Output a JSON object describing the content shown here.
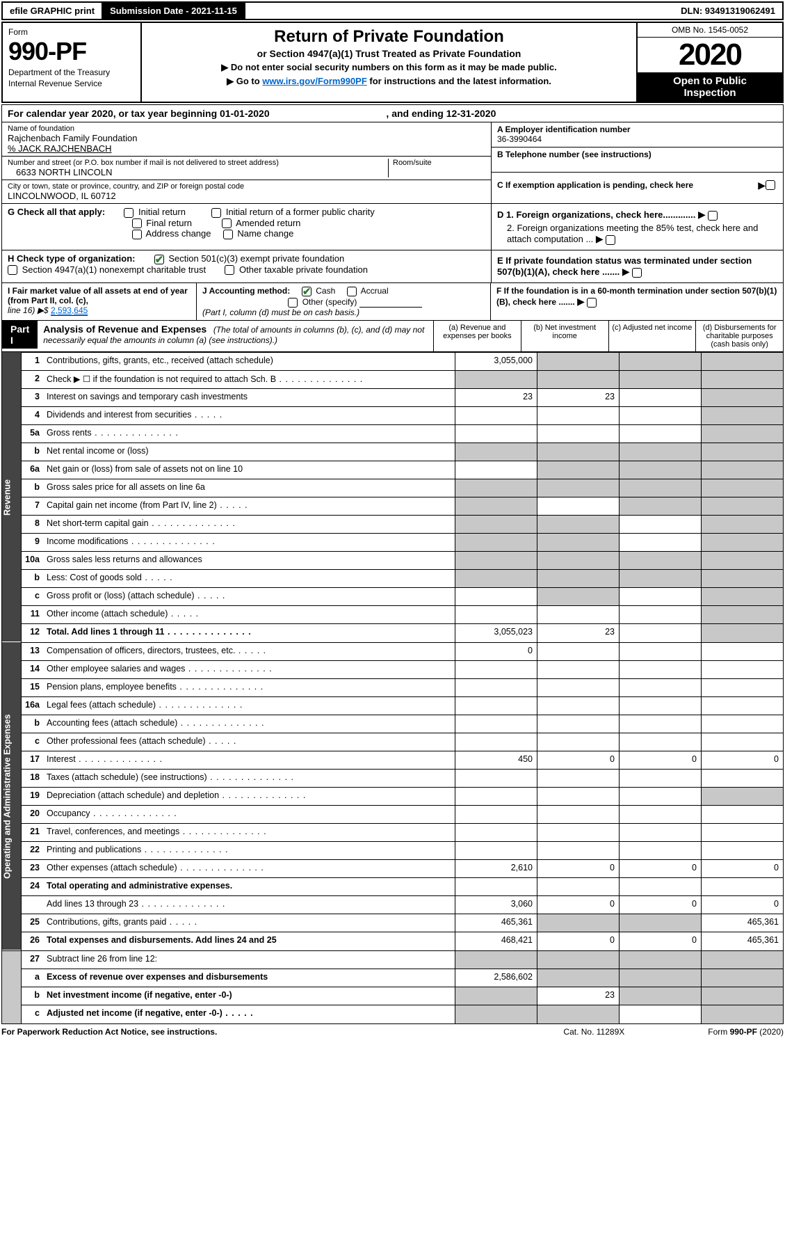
{
  "topbar": {
    "efile": "efile GRAPHIC print",
    "submission_label": "Submission Date - 2021-11-15",
    "dln_label": "DLN: 93491319062491"
  },
  "header": {
    "form_label": "Form",
    "form_number": "990-PF",
    "dept1": "Department of the Treasury",
    "dept2": "Internal Revenue Service",
    "title": "Return of Private Foundation",
    "subtitle": "or Section 4947(a)(1) Trust Treated as Private Foundation",
    "note1": "▶ Do not enter social security numbers on this form as it may be made public.",
    "note2_pre": "▶ Go to ",
    "note2_link": "www.irs.gov/Form990PF",
    "note2_post": " for instructions and the latest information.",
    "omb": "OMB No. 1545-0052",
    "year": "2020",
    "open1": "Open to Public",
    "open2": "Inspection"
  },
  "calendar": {
    "text_pre": "For calendar year 2020, or tax year beginning 01-01-2020",
    "text_mid": ", and ending 12-31-2020"
  },
  "foundation": {
    "name_label": "Name of foundation",
    "name": "Rajchenbach Family Foundation",
    "care_of": "% JACK RAJCHENBACH",
    "addr_label": "Number and street (or P.O. box number if mail is not delivered to street address)",
    "addr": "6633 NORTH LINCOLN",
    "room_label": "Room/suite",
    "room": "",
    "city_label": "City or town, state or province, country, and ZIP or foreign postal code",
    "city": "LINCOLNWOOD, IL  60712",
    "ein_label": "A Employer identification number",
    "ein": "36-3990464",
    "tel_label": "B Telephone number (see instructions)",
    "tel": "",
    "c_label": "C If exemption application is pending, check here",
    "d1_label": "D 1. Foreign organizations, check here.............",
    "d2_label": "2. Foreign organizations meeting the 85% test, check here and attach computation ...",
    "e_label": "E  If private foundation status was terminated under section 507(b)(1)(A), check here .......",
    "f_label": "F  If the foundation is in a 60-month termination under section 507(b)(1)(B), check here ......."
  },
  "g_section": {
    "label": "G Check all that apply:",
    "opts": [
      "Initial return",
      "Final return",
      "Address change",
      "Initial return of a former public charity",
      "Amended return",
      "Name change"
    ]
  },
  "h_section": {
    "label": "H Check type of organization:",
    "opt1": "Section 501(c)(3) exempt private foundation",
    "opt2": "Section 4947(a)(1) nonexempt charitable trust",
    "opt3": "Other taxable private foundation"
  },
  "i_section": {
    "label": "I Fair market value of all assets at end of year (from Part II, col. (c),",
    "line16": "line 16) ▶$",
    "value": "2,593,645"
  },
  "j_section": {
    "label": "J Accounting method:",
    "cash": "Cash",
    "accrual": "Accrual",
    "other": "Other (specify)",
    "note": "(Part I, column (d) must be on cash basis.)"
  },
  "part1": {
    "label": "Part I",
    "title": "Analysis of Revenue and Expenses",
    "title_note": " (The total of amounts in columns (b), (c), and (d) may not necessarily equal the amounts in column (a) (see instructions).)",
    "col_a": "(a)   Revenue and expenses per books",
    "col_b": "(b)   Net investment income",
    "col_c": "(c)   Adjusted net income",
    "col_d": "(d)   Disbursements for charitable purposes (cash basis only)"
  },
  "revenue_label": "Revenue",
  "expenses_label": "Operating and Administrative Expenses",
  "lines": {
    "l1": {
      "n": "1",
      "t": "Contributions, gifts, grants, etc., received (attach schedule)",
      "a": "3,055,000",
      "b": "",
      "c": "",
      "d": "",
      "shade_b": true,
      "shade_c": true,
      "shade_d": true
    },
    "l2": {
      "n": "2",
      "t": "Check ▶ ☐ if the foundation is not required to attach Sch. B"
    },
    "l3": {
      "n": "3",
      "t": "Interest on savings and temporary cash investments",
      "a": "23",
      "b": "23",
      "c": "",
      "d": "",
      "shade_d": true
    },
    "l4": {
      "n": "4",
      "t": "Dividends and interest from securities",
      "a": "",
      "b": "",
      "c": "",
      "d": "",
      "shade_d": true
    },
    "l5a": {
      "n": "5a",
      "t": "Gross rents",
      "a": "",
      "b": "",
      "c": "",
      "d": "",
      "shade_d": true
    },
    "l5b": {
      "n": "b",
      "t": "Net rental income or (loss)"
    },
    "l6a": {
      "n": "6a",
      "t": "Net gain or (loss) from sale of assets not on line 10",
      "a": "",
      "b": "",
      "c": "",
      "d": "",
      "shade_b": true,
      "shade_c": true,
      "shade_d": true
    },
    "l6b": {
      "n": "b",
      "t": "Gross sales price for all assets on line 6a"
    },
    "l7": {
      "n": "7",
      "t": "Capital gain net income (from Part IV, line 2)",
      "a": "",
      "b": "",
      "c": "",
      "d": "",
      "shade_a": true,
      "shade_c": true,
      "shade_d": true
    },
    "l8": {
      "n": "8",
      "t": "Net short-term capital gain",
      "a": "",
      "b": "",
      "c": "",
      "d": "",
      "shade_a": true,
      "shade_b": true,
      "shade_d": true
    },
    "l9": {
      "n": "9",
      "t": "Income modifications",
      "a": "",
      "b": "",
      "c": "",
      "d": "",
      "shade_a": true,
      "shade_b": true,
      "shade_d": true
    },
    "l10a": {
      "n": "10a",
      "t": "Gross sales less returns and allowances"
    },
    "l10b": {
      "n": "b",
      "t": "Less: Cost of goods sold"
    },
    "l10c": {
      "n": "c",
      "t": "Gross profit or (loss) (attach schedule)",
      "a": "",
      "b": "",
      "c": "",
      "d": "",
      "shade_b": true,
      "shade_d": true
    },
    "l11": {
      "n": "11",
      "t": "Other income (attach schedule)",
      "a": "",
      "b": "",
      "c": "",
      "d": "",
      "shade_d": true
    },
    "l12": {
      "n": "12",
      "t": "Total. Add lines 1 through 11",
      "a": "3,055,023",
      "b": "23",
      "c": "",
      "d": "",
      "shade_d": true,
      "bold": true
    },
    "l13": {
      "n": "13",
      "t": "Compensation of officers, directors, trustees, etc.",
      "a": "0",
      "b": "",
      "c": "",
      "d": ""
    },
    "l14": {
      "n": "14",
      "t": "Other employee salaries and wages",
      "a": "",
      "b": "",
      "c": "",
      "d": ""
    },
    "l15": {
      "n": "15",
      "t": "Pension plans, employee benefits",
      "a": "",
      "b": "",
      "c": "",
      "d": ""
    },
    "l16a": {
      "n": "16a",
      "t": "Legal fees (attach schedule)",
      "a": "",
      "b": "",
      "c": "",
      "d": ""
    },
    "l16b": {
      "n": "b",
      "t": "Accounting fees (attach schedule)",
      "a": "",
      "b": "",
      "c": "",
      "d": ""
    },
    "l16c": {
      "n": "c",
      "t": "Other professional fees (attach schedule)",
      "a": "",
      "b": "",
      "c": "",
      "d": ""
    },
    "l17": {
      "n": "17",
      "t": "Interest",
      "a": "450",
      "b": "0",
      "c": "0",
      "d": "0"
    },
    "l18": {
      "n": "18",
      "t": "Taxes (attach schedule) (see instructions)",
      "a": "",
      "b": "",
      "c": "",
      "d": ""
    },
    "l19": {
      "n": "19",
      "t": "Depreciation (attach schedule) and depletion",
      "a": "",
      "b": "",
      "c": "",
      "d": "",
      "shade_d": true
    },
    "l20": {
      "n": "20",
      "t": "Occupancy",
      "a": "",
      "b": "",
      "c": "",
      "d": ""
    },
    "l21": {
      "n": "21",
      "t": "Travel, conferences, and meetings",
      "a": "",
      "b": "",
      "c": "",
      "d": ""
    },
    "l22": {
      "n": "22",
      "t": "Printing and publications",
      "a": "",
      "b": "",
      "c": "",
      "d": ""
    },
    "l23": {
      "n": "23",
      "t": "Other expenses (attach schedule)",
      "a": "2,610",
      "b": "0",
      "c": "0",
      "d": "0"
    },
    "l24": {
      "n": "24",
      "t": "Total operating and administrative expenses.",
      "bold": true
    },
    "l24b": {
      "n": "",
      "t": "Add lines 13 through 23",
      "a": "3,060",
      "b": "0",
      "c": "0",
      "d": "0"
    },
    "l25": {
      "n": "25",
      "t": "Contributions, gifts, grants paid",
      "a": "465,361",
      "b": "",
      "c": "",
      "d": "465,361",
      "shade_b": true,
      "shade_c": true
    },
    "l26": {
      "n": "26",
      "t": "Total expenses and disbursements. Add lines 24 and 25",
      "a": "468,421",
      "b": "0",
      "c": "0",
      "d": "465,361",
      "bold": true
    },
    "l27": {
      "n": "27",
      "t": "Subtract line 26 from line 12:",
      "shade_all": true
    },
    "l27a": {
      "n": "a",
      "t": "Excess of revenue over expenses and disbursements",
      "a": "2,586,602",
      "b": "",
      "c": "",
      "d": "",
      "shade_b": true,
      "shade_c": true,
      "shade_d": true,
      "bold": true
    },
    "l27b": {
      "n": "b",
      "t": "Net investment income (if negative, enter -0-)",
      "a": "",
      "b": "23",
      "c": "",
      "d": "",
      "shade_a": true,
      "shade_c": true,
      "shade_d": true,
      "bold": true
    },
    "l27c": {
      "n": "c",
      "t": "Adjusted net income (if negative, enter -0-)",
      "a": "",
      "b": "",
      "c": "",
      "d": "",
      "shade_a": true,
      "shade_b": true,
      "shade_d": true,
      "bold": true
    }
  },
  "footer": {
    "left": "For Paperwork Reduction Act Notice, see instructions.",
    "mid": "Cat. No. 11289X",
    "right": "Form 990-PF (2020)"
  },
  "colors": {
    "link": "#0066cc",
    "shade": "#c8c8c8",
    "sidebar": "#444444",
    "check_green": "#2e7d32"
  }
}
